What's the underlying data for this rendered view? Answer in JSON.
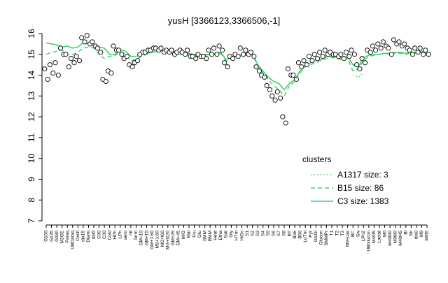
{
  "chart_data": {
    "type": "line",
    "title": "yusH [3366123,3366506,-1]",
    "xlabel": "",
    "ylabel": "",
    "ylim": [
      7,
      16
    ],
    "yticks": [
      7,
      8,
      9,
      10,
      11,
      12,
      13,
      14,
      15,
      16
    ],
    "grid": false,
    "legend": {
      "position": "right",
      "title": "clusters",
      "entries": [
        {
          "label": "A1317 size: 3",
          "style": "dotted",
          "color": "#3fd46a"
        },
        {
          "label": "B15 size: 86",
          "style": "dashed",
          "color": "#3fd46a"
        },
        {
          "label": "C3 size: 1383",
          "style": "solid",
          "color": "#3fd46a"
        }
      ]
    },
    "xtick_labels": [
      "G150",
      "G135",
      "G180",
      "M2GE",
      "Paraq",
      "UBDaraq",
      "Oxctl",
      "dia15",
      "Diami",
      "dia5",
      "C90",
      "C30",
      "Cold",
      "HPh",
      "LPh",
      "aero",
      "nit",
      "ferm",
      "GM+10",
      "GM+15",
      "GM+1:60",
      "M9+1:60",
      "MG+t60",
      "MG+t120",
      "GM+25",
      "GM+45",
      "M/G",
      "Mal",
      "Fru",
      "Glu",
      "SMM",
      "BMM",
      "Heat",
      "Etha",
      "Salt",
      "Gly",
      "HTm",
      "HiOs",
      "S1",
      "S2",
      "S3",
      "S4",
      "S5",
      "S6",
      "S7",
      "S8",
      "BT",
      "B36",
      "B60",
      "LoTm",
      "Pyr",
      "GlcGl",
      "Glucon",
      "SMMPr",
      "T1",
      "T2",
      "T3",
      "M9+cas",
      "BC",
      "Sw",
      "LPh2",
      "UBGlucon",
      "M40t5",
      "Lactat",
      "M0",
      "M40t90",
      "M0t90",
      "M40t45",
      "Bl",
      "Sb",
      "dia0",
      "M9",
      "M9t5"
    ],
    "series": [
      {
        "name": "C3 size: 1383",
        "style": "solid",
        "color": "#3fd46a",
        "values": [
          15.55,
          15.5,
          15.45,
          15.35,
          15.4,
          15.3,
          15.35,
          15.55,
          15.5,
          15.4,
          15.35,
          15.3,
          15.0,
          15.0,
          15.2,
          15.15,
          14.9,
          14.9,
          15.0,
          15.05,
          15.1,
          15.15,
          15.2,
          15.15,
          15.15,
          15.1,
          15.05,
          15.05,
          15.0,
          15.0,
          15.0,
          15.0,
          15.05,
          15.1,
          14.75,
          14.85,
          14.9,
          15.0,
          15.05,
          15.05,
          14.5,
          14.2,
          13.9,
          13.7,
          13.6,
          13.3,
          13.6,
          13.8,
          14.2,
          14.5,
          14.6,
          14.7,
          14.75,
          14.9,
          14.9,
          14.85,
          14.8,
          14.9,
          14.5,
          14.4,
          14.85,
          14.95,
          15.0,
          15.0,
          15.05,
          15.05,
          15.1,
          15.1,
          15.05,
          15.1,
          15.1,
          15.15,
          15.15
        ]
      },
      {
        "name": "B15 size: 86",
        "style": "dashed",
        "color": "#3fd46a",
        "values": [
          15.0,
          15.1,
          15.15,
          15.2,
          15.0,
          15.0,
          15.1,
          15.3,
          15.35,
          15.3,
          15.0,
          14.8,
          14.9,
          14.95,
          15.1,
          15.0,
          14.7,
          14.75,
          14.9,
          15.0,
          15.1,
          15.1,
          15.15,
          15.1,
          15.05,
          15.0,
          15.0,
          15.0,
          14.95,
          14.9,
          14.95,
          15.0,
          15.0,
          15.05,
          14.7,
          14.8,
          14.85,
          14.95,
          14.95,
          15.0,
          14.4,
          14.1,
          13.8,
          13.5,
          13.3,
          13.0,
          13.5,
          13.7,
          14.1,
          14.4,
          14.5,
          14.6,
          14.7,
          14.8,
          14.85,
          14.8,
          14.7,
          14.8,
          14.2,
          14.3,
          14.7,
          14.9,
          14.95,
          15.0,
          15.05,
          15.0,
          15.05,
          15.05,
          15.0,
          15.05,
          15.05,
          15.1,
          15.1
        ]
      },
      {
        "name": "A1317 size: 3",
        "style": "dotted",
        "color": "#3fd46a",
        "values": [
          null,
          null,
          null,
          null,
          null,
          null,
          null,
          null,
          null,
          null,
          null,
          null,
          null,
          null,
          null,
          null,
          null,
          null,
          null,
          null,
          null,
          null,
          null,
          null,
          null,
          null,
          null,
          null,
          null,
          null,
          null,
          null,
          null,
          null,
          null,
          null,
          null,
          null,
          null,
          null,
          null,
          null,
          null,
          null,
          null,
          null,
          null,
          null,
          null,
          null,
          null,
          null,
          null,
          null,
          null,
          null,
          null,
          null,
          14.0,
          13.9,
          14.1,
          null,
          null,
          null,
          null,
          null,
          null,
          null,
          null,
          null,
          null,
          null,
          null
        ]
      }
    ],
    "points": [
      [
        14.3,
        13.8
      ],
      [
        14.5,
        14.1
      ],
      [
        14.6,
        14.0
      ],
      [
        15.3,
        15.0
      ],
      [
        15.0,
        14.4
      ],
      [
        14.8,
        14.6
      ],
      [
        14.9,
        14.7
      ],
      [
        15.8,
        15.6
      ],
      [
        15.9,
        15.5
      ],
      [
        15.6,
        15.4
      ],
      [
        15.3,
        15.1
      ],
      [
        13.8,
        13.7
      ],
      [
        14.2,
        14.1
      ],
      [
        15.4,
        15.2
      ],
      [
        15.2,
        15.0
      ],
      [
        14.8,
        14.9
      ],
      [
        14.5,
        14.4
      ],
      [
        14.6,
        14.7
      ],
      [
        15.0,
        15.1
      ],
      [
        15.1,
        15.2
      ],
      [
        15.2,
        15.3
      ],
      [
        15.3,
        15.2
      ],
      [
        15.3,
        15.1
      ],
      [
        15.2,
        15.1
      ],
      [
        15.2,
        15.0
      ],
      [
        15.1,
        15.2
      ],
      [
        15.1,
        15.0
      ],
      [
        15.2,
        14.9
      ],
      [
        14.9,
        14.8
      ],
      [
        15.0,
        14.9
      ],
      [
        14.9,
        14.8
      ],
      [
        15.2,
        15.0
      ],
      [
        15.3,
        15.0
      ],
      [
        15.4,
        15.2
      ],
      [
        14.6,
        14.4
      ],
      [
        14.9,
        14.8
      ],
      [
        15.0,
        14.9
      ],
      [
        15.3,
        15.0
      ],
      [
        15.2,
        15.0
      ],
      [
        15.1,
        14.9
      ],
      [
        14.4,
        14.2
      ],
      [
        14.0,
        13.9
      ],
      [
        13.5,
        13.3
      ],
      [
        13.0,
        12.8
      ],
      [
        13.2,
        12.9
      ],
      [
        12.0,
        11.7
      ],
      [
        14.3,
        14.0
      ],
      [
        14.0,
        13.8
      ],
      [
        14.6,
        14.4
      ],
      [
        14.7,
        14.5
      ],
      [
        14.9,
        14.7
      ],
      [
        15.0,
        14.8
      ],
      [
        15.1,
        14.9
      ],
      [
        15.2,
        15.0
      ],
      [
        15.1,
        15.0
      ],
      [
        15.0,
        14.9
      ],
      [
        15.0,
        14.8
      ],
      [
        15.1,
        14.9
      ],
      [
        15.2,
        15.0
      ],
      [
        14.5,
        14.3
      ],
      [
        14.8,
        14.6
      ],
      [
        15.2,
        15.1
      ],
      [
        15.4,
        15.2
      ],
      [
        15.5,
        15.3
      ],
      [
        15.6,
        15.4
      ],
      [
        15.3,
        15.0
      ],
      [
        15.7,
        15.5
      ],
      [
        15.6,
        15.4
      ],
      [
        15.5,
        15.3
      ],
      [
        15.2,
        15.0
      ],
      [
        15.3,
        15.1
      ],
      [
        15.3,
        15.0
      ],
      [
        15.2,
        15.0
      ]
    ]
  }
}
